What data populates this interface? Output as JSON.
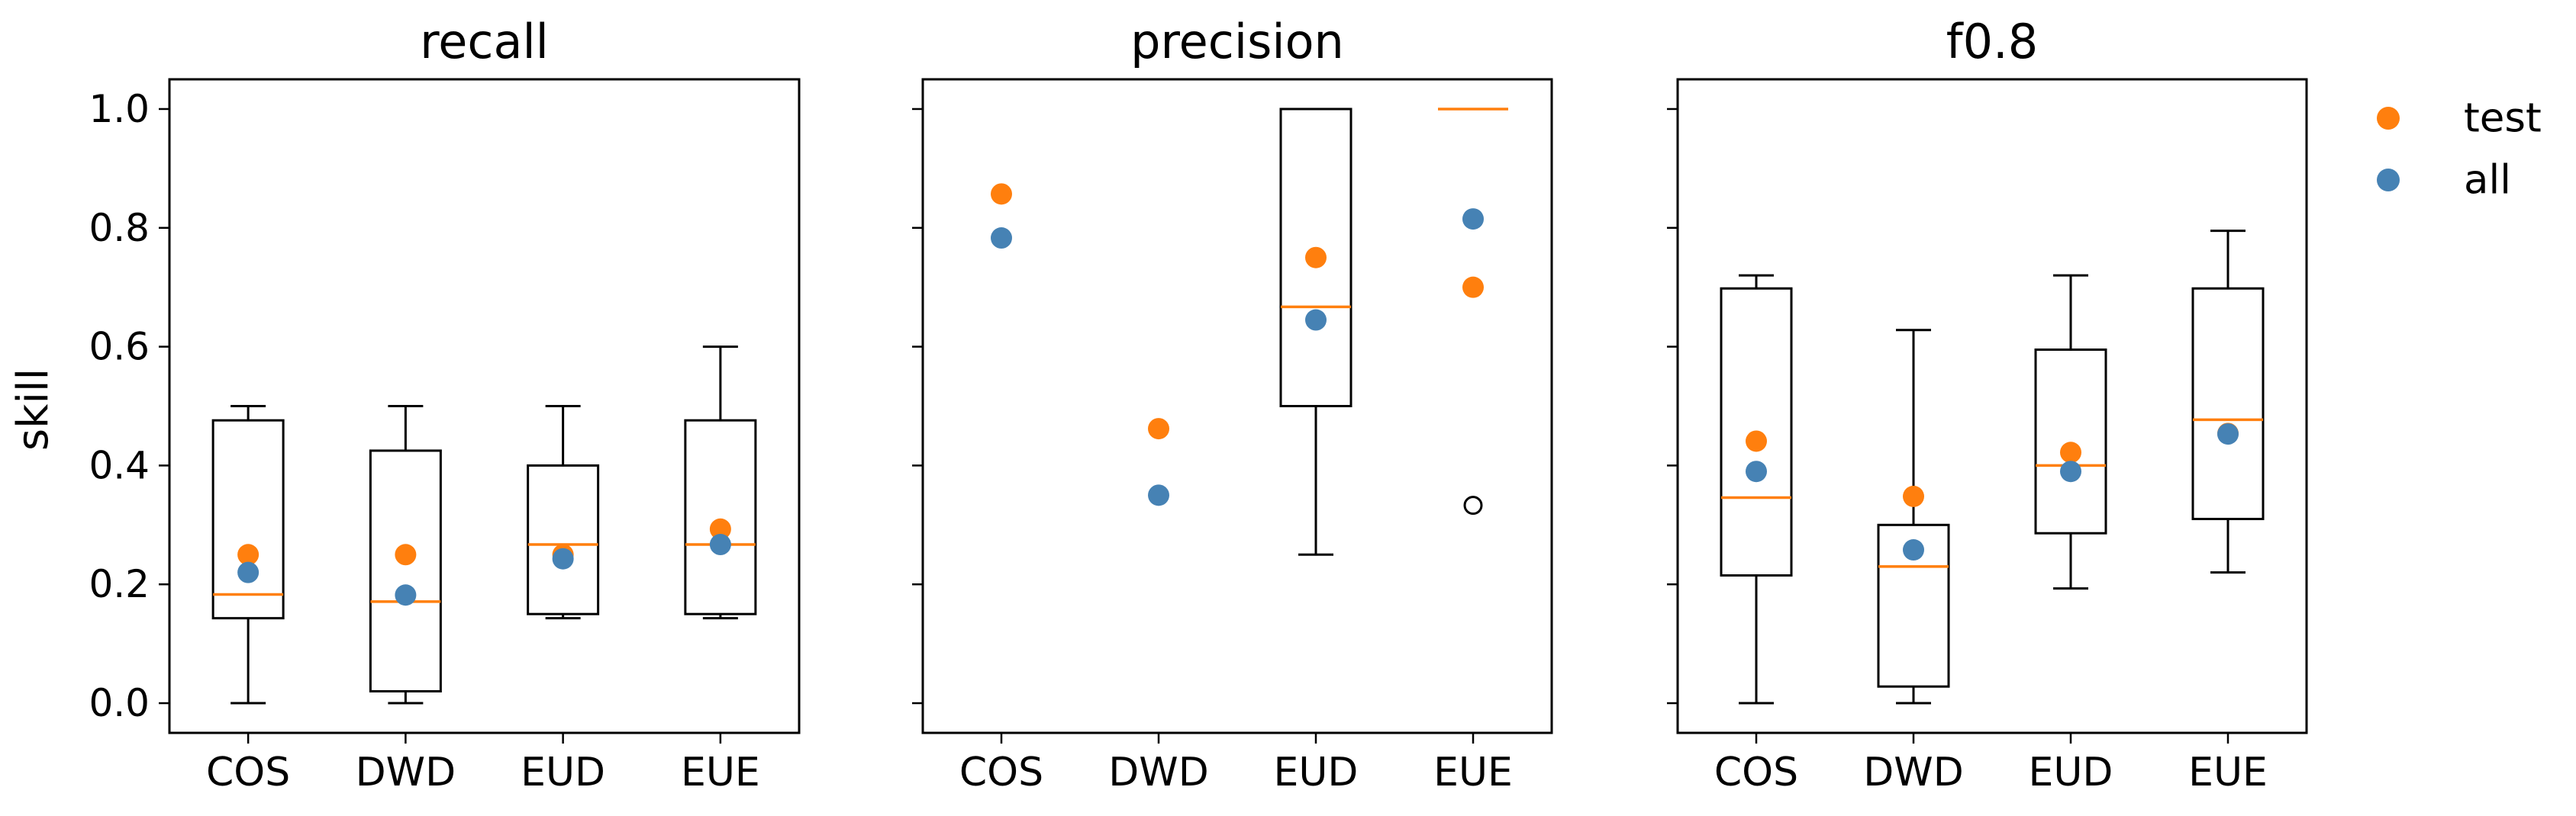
{
  "figure": {
    "ylabel": "skill",
    "legend": {
      "placement": "top-right, outside plots",
      "entries": [
        {
          "label": "test",
          "color": "#ff7f0e"
        },
        {
          "label": "all",
          "color": "#4682b4"
        }
      ]
    }
  },
  "colors": {
    "test": "#ff7f0e",
    "all": "#4682b4",
    "median": "#ff7f0e",
    "box": "#000000"
  },
  "chart_data": [
    {
      "type": "box",
      "title": "recall",
      "categories": [
        "COS",
        "DWD",
        "EUD",
        "EUE"
      ],
      "ylim": [
        -0.05,
        1.05
      ],
      "yticks": [
        "0.0",
        "0.2",
        "0.4",
        "0.6",
        "0.8",
        "1.0"
      ],
      "boxes": [
        {
          "whislo": 0.0,
          "q1": 0.143,
          "med": 0.183,
          "q3": 0.476,
          "whishi": 0.5,
          "fliers": []
        },
        {
          "whislo": 0.0,
          "q1": 0.02,
          "med": 0.171,
          "q3": 0.425,
          "whishi": 0.5,
          "fliers": []
        },
        {
          "whislo": 0.143,
          "q1": 0.15,
          "med": 0.267,
          "q3": 0.4,
          "whishi": 0.5,
          "fliers": []
        },
        {
          "whislo": 0.143,
          "q1": 0.15,
          "med": 0.267,
          "q3": 0.476,
          "whishi": 0.6,
          "fliers": []
        }
      ],
      "series": [
        {
          "name": "test",
          "values": [
            0.25,
            0.25,
            0.25,
            0.293
          ]
        },
        {
          "name": "all",
          "values": [
            0.22,
            0.182,
            0.243,
            0.267
          ]
        }
      ]
    },
    {
      "type": "box",
      "title": "precision",
      "categories": [
        "COS",
        "DWD",
        "EUD",
        "EUE"
      ],
      "ylim": [
        -0.05,
        1.05
      ],
      "yticks": [
        "0.0",
        "0.2",
        "0.4",
        "0.6",
        "0.8",
        "1.0"
      ],
      "boxes": [
        null,
        null,
        {
          "whislo": 0.25,
          "q1": 0.5,
          "med": 0.667,
          "q3": 1.0,
          "whishi": 1.0,
          "fliers": []
        },
        {
          "whislo": 1.0,
          "q1": 1.0,
          "med": 1.0,
          "q3": 1.0,
          "whishi": 1.0,
          "fliers": [
            0.333
          ]
        }
      ],
      "series": [
        {
          "name": "test",
          "values": [
            0.857,
            0.462,
            0.75,
            0.7
          ]
        },
        {
          "name": "all",
          "values": [
            0.783,
            0.35,
            0.645,
            0.815
          ]
        }
      ]
    },
    {
      "type": "box",
      "title": "f0.8",
      "categories": [
        "COS",
        "DWD",
        "EUD",
        "EUE"
      ],
      "ylim": [
        -0.05,
        1.05
      ],
      "yticks": [
        "0.0",
        "0.2",
        "0.4",
        "0.6",
        "0.8",
        "1.0"
      ],
      "boxes": [
        {
          "whislo": 0.0,
          "q1": 0.215,
          "med": 0.346,
          "q3": 0.698,
          "whishi": 0.72,
          "fliers": []
        },
        {
          "whislo": 0.0,
          "q1": 0.028,
          "med": 0.23,
          "q3": 0.3,
          "whishi": 0.628,
          "fliers": []
        },
        {
          "whislo": 0.193,
          "q1": 0.286,
          "med": 0.4,
          "q3": 0.595,
          "whishi": 0.72,
          "fliers": []
        },
        {
          "whislo": 0.22,
          "q1": 0.31,
          "med": 0.477,
          "q3": 0.698,
          "whishi": 0.795,
          "fliers": []
        }
      ],
      "series": [
        {
          "name": "test",
          "values": [
            0.441,
            0.348,
            0.422,
            0.454
          ]
        },
        {
          "name": "all",
          "values": [
            0.39,
            0.258,
            0.39,
            0.453
          ]
        }
      ]
    }
  ]
}
